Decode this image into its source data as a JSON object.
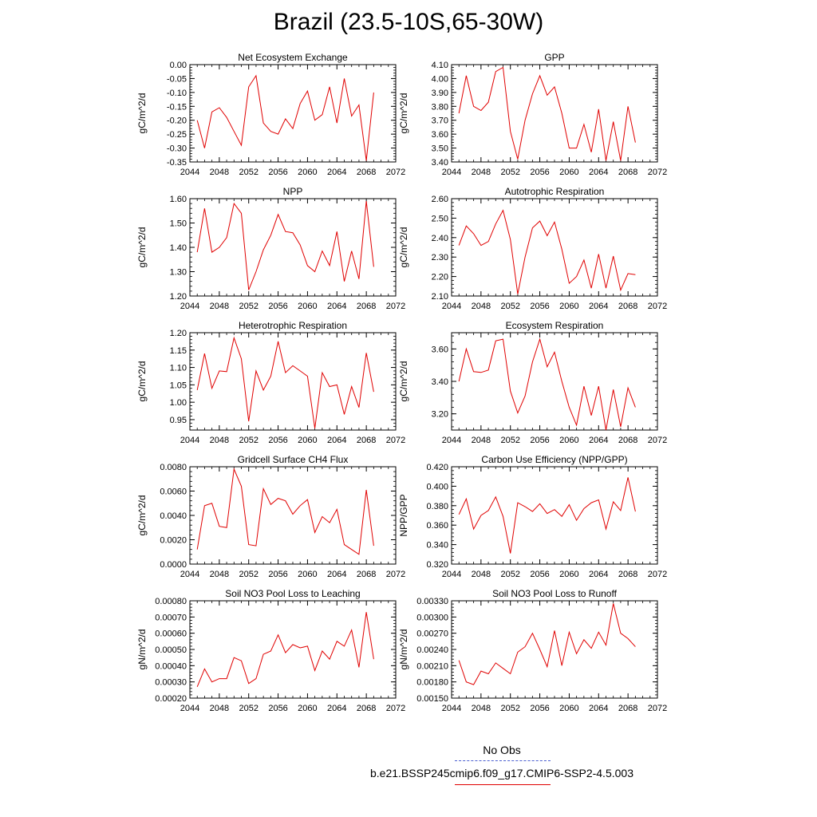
{
  "page": {
    "title": "Brazil (23.5-10S,65-30W)"
  },
  "legend": {
    "obs_label": "No Obs",
    "model_label": "b.e21.BSSP245cmip6.f09_g17.CMIP6-SSP2-4.5.003",
    "obs_color": "#4a5fd0",
    "model_color": "#e00000"
  },
  "chart_data": [
    {
      "type": "line",
      "title": "Net Ecosystem Exchange",
      "ylabel": "gC/m^2/d",
      "xlim": [
        2044,
        2072
      ],
      "ylim": [
        -0.35,
        0.0
      ],
      "xticks": [
        "2044",
        "2048",
        "2052",
        "2056",
        "2060",
        "2064",
        "2068",
        "2072"
      ],
      "yticks": [
        "0.00",
        "-0.05",
        "-0.10",
        "-0.15",
        "-0.20",
        "-0.25",
        "-0.30",
        "-0.35"
      ],
      "ytick_values": [
        0.0,
        -0.05,
        -0.1,
        -0.15,
        -0.2,
        -0.25,
        -0.3,
        -0.35
      ],
      "x": [
        2045,
        2046,
        2047,
        2048,
        2049,
        2050,
        2051,
        2052,
        2053,
        2054,
        2055,
        2056,
        2057,
        2058,
        2059,
        2060,
        2061,
        2062,
        2063,
        2064,
        2065,
        2066,
        2067,
        2068,
        2069
      ],
      "series": [
        {
          "values": [
            -0.2,
            -0.3,
            -0.17,
            -0.155,
            -0.19,
            -0.24,
            -0.29,
            -0.08,
            -0.04,
            -0.21,
            -0.24,
            -0.25,
            -0.195,
            -0.23,
            -0.14,
            -0.095,
            -0.2,
            -0.18,
            -0.08,
            -0.21,
            -0.05,
            -0.185,
            -0.145,
            -0.345,
            -0.1
          ]
        }
      ]
    },
    {
      "type": "line",
      "title": "GPP",
      "ylabel": "gC/m^2/d",
      "xlim": [
        2044,
        2072
      ],
      "ylim": [
        3.4,
        4.1
      ],
      "xticks": [
        "2044",
        "2048",
        "2052",
        "2056",
        "2060",
        "2064",
        "2068",
        "2072"
      ],
      "yticks": [
        "4.10",
        "4.00",
        "3.90",
        "3.80",
        "3.70",
        "3.60",
        "3.50",
        "3.40"
      ],
      "ytick_values": [
        4.1,
        4.0,
        3.9,
        3.8,
        3.7,
        3.6,
        3.5,
        3.4
      ],
      "x": [
        2045,
        2046,
        2047,
        2048,
        2049,
        2050,
        2051,
        2052,
        2053,
        2054,
        2055,
        2056,
        2057,
        2058,
        2059,
        2060,
        2061,
        2062,
        2063,
        2064,
        2065,
        2066,
        2067,
        2068,
        2069
      ],
      "series": [
        {
          "values": [
            3.75,
            4.02,
            3.8,
            3.77,
            3.83,
            4.05,
            4.08,
            3.62,
            3.42,
            3.7,
            3.89,
            4.02,
            3.88,
            3.94,
            3.75,
            3.5,
            3.5,
            3.67,
            3.47,
            3.78,
            3.41,
            3.69,
            3.41,
            3.8,
            3.54
          ]
        }
      ]
    },
    {
      "type": "line",
      "title": "NPP",
      "ylabel": "gC/m^2/d",
      "xlim": [
        2044,
        2072
      ],
      "ylim": [
        1.2,
        1.6
      ],
      "xticks": [
        "2044",
        "2048",
        "2052",
        "2056",
        "2060",
        "2064",
        "2068",
        "2072"
      ],
      "yticks": [
        "1.60",
        "1.50",
        "1.40",
        "1.30",
        "1.20"
      ],
      "ytick_values": [
        1.6,
        1.5,
        1.4,
        1.3,
        1.2
      ],
      "x": [
        2045,
        2046,
        2047,
        2048,
        2049,
        2050,
        2051,
        2052,
        2053,
        2054,
        2055,
        2056,
        2057,
        2058,
        2059,
        2060,
        2061,
        2062,
        2063,
        2064,
        2065,
        2066,
        2067,
        2068,
        2069
      ],
      "series": [
        {
          "values": [
            1.38,
            1.56,
            1.38,
            1.4,
            1.44,
            1.58,
            1.54,
            1.225,
            1.3,
            1.39,
            1.45,
            1.535,
            1.465,
            1.46,
            1.41,
            1.325,
            1.3,
            1.385,
            1.325,
            1.465,
            1.26,
            1.385,
            1.27,
            1.59,
            1.32
          ]
        }
      ]
    },
    {
      "type": "line",
      "title": "Autotrophic Respiration",
      "ylabel": "gC/m^2/d",
      "xlim": [
        2044,
        2072
      ],
      "ylim": [
        2.1,
        2.6
      ],
      "xticks": [
        "2044",
        "2048",
        "2052",
        "2056",
        "2060",
        "2064",
        "2068",
        "2072"
      ],
      "yticks": [
        "2.60",
        "2.50",
        "2.40",
        "2.30",
        "2.20",
        "2.10"
      ],
      "ytick_values": [
        2.6,
        2.5,
        2.4,
        2.3,
        2.2,
        2.1
      ],
      "x": [
        2045,
        2046,
        2047,
        2048,
        2049,
        2050,
        2051,
        2052,
        2053,
        2054,
        2055,
        2056,
        2057,
        2058,
        2059,
        2060,
        2061,
        2062,
        2063,
        2064,
        2065,
        2066,
        2067,
        2068,
        2069
      ],
      "series": [
        {
          "values": [
            2.36,
            2.46,
            2.42,
            2.36,
            2.38,
            2.47,
            2.54,
            2.39,
            2.11,
            2.3,
            2.45,
            2.485,
            2.41,
            2.48,
            2.34,
            2.165,
            2.2,
            2.285,
            2.14,
            2.315,
            2.14,
            2.305,
            2.13,
            2.215,
            2.21
          ]
        }
      ]
    },
    {
      "type": "line",
      "title": "Heterotrophic Respiration",
      "ylabel": "gC/m^2/d",
      "xlim": [
        2044,
        2072
      ],
      "ylim": [
        0.92,
        1.2
      ],
      "xticks": [
        "2044",
        "2048",
        "2052",
        "2056",
        "2060",
        "2064",
        "2068",
        "2072"
      ],
      "yticks": [
        "1.20",
        "1.15",
        "1.10",
        "1.05",
        "1.00",
        "0.95"
      ],
      "ytick_values": [
        1.2,
        1.15,
        1.1,
        1.05,
        1.0,
        0.95
      ],
      "x": [
        2045,
        2046,
        2047,
        2048,
        2049,
        2050,
        2051,
        2052,
        2053,
        2054,
        2055,
        2056,
        2057,
        2058,
        2059,
        2060,
        2061,
        2062,
        2063,
        2064,
        2065,
        2066,
        2067,
        2068,
        2069
      ],
      "series": [
        {
          "values": [
            1.035,
            1.14,
            1.04,
            1.09,
            1.088,
            1.185,
            1.125,
            0.945,
            1.09,
            1.035,
            1.075,
            1.175,
            1.085,
            1.105,
            1.09,
            1.075,
            0.925,
            1.085,
            1.045,
            1.05,
            0.965,
            1.045,
            0.985,
            1.142,
            1.03
          ]
        }
      ]
    },
    {
      "type": "line",
      "title": "Ecosystem Respiration",
      "ylabel": "gC/m^2/d",
      "xlim": [
        2044,
        2072
      ],
      "ylim": [
        3.1,
        3.7
      ],
      "xticks": [
        "2044",
        "2048",
        "2052",
        "2056",
        "2060",
        "2064",
        "2068",
        "2072"
      ],
      "yticks": [
        "3.60",
        "3.40",
        "3.20"
      ],
      "ytick_values": [
        3.6,
        3.4,
        3.2
      ],
      "x": [
        2045,
        2046,
        2047,
        2048,
        2049,
        2050,
        2051,
        2052,
        2053,
        2054,
        2055,
        2056,
        2057,
        2058,
        2059,
        2060,
        2061,
        2062,
        2063,
        2064,
        2065,
        2066,
        2067,
        2068,
        2069
      ],
      "series": [
        {
          "values": [
            3.4,
            3.6,
            3.46,
            3.455,
            3.47,
            3.65,
            3.66,
            3.34,
            3.205,
            3.31,
            3.52,
            3.66,
            3.49,
            3.58,
            3.4,
            3.24,
            3.13,
            3.37,
            3.19,
            3.37,
            3.1,
            3.35,
            3.12,
            3.36,
            3.24
          ]
        }
      ]
    },
    {
      "type": "line",
      "title": "Gridcell Surface CH4 Flux",
      "ylabel": "gC/m^2/d",
      "xlim": [
        2044,
        2072
      ],
      "ylim": [
        0.0,
        0.008
      ],
      "xticks": [
        "2044",
        "2048",
        "2052",
        "2056",
        "2060",
        "2064",
        "2068",
        "2072"
      ],
      "yticks": [
        "0.0080",
        "0.0060",
        "0.0040",
        "0.0020",
        "0.0000"
      ],
      "ytick_values": [
        0.008,
        0.006,
        0.004,
        0.002,
        0.0
      ],
      "x": [
        2045,
        2046,
        2047,
        2048,
        2049,
        2050,
        2051,
        2052,
        2053,
        2054,
        2055,
        2056,
        2057,
        2058,
        2059,
        2060,
        2061,
        2062,
        2063,
        2064,
        2065,
        2066,
        2067,
        2068,
        2069
      ],
      "series": [
        {
          "values": [
            0.0012,
            0.0048,
            0.005,
            0.0031,
            0.003,
            0.0078,
            0.0064,
            0.0016,
            0.0015,
            0.0062,
            0.0049,
            0.0054,
            0.0052,
            0.0041,
            0.0048,
            0.0053,
            0.0026,
            0.0039,
            0.0034,
            0.0045,
            0.0016,
            0.0012,
            0.0008,
            0.0061,
            0.0015
          ]
        }
      ]
    },
    {
      "type": "line",
      "title": "Carbon Use Efficiency (NPP/GPP)",
      "ylabel": "NPP/GPP",
      "xlim": [
        2044,
        2072
      ],
      "ylim": [
        0.32,
        0.42
      ],
      "xticks": [
        "2044",
        "2048",
        "2052",
        "2056",
        "2060",
        "2064",
        "2068",
        "2072"
      ],
      "yticks": [
        "0.420",
        "0.400",
        "0.380",
        "0.360",
        "0.340",
        "0.320"
      ],
      "ytick_values": [
        0.42,
        0.4,
        0.38,
        0.36,
        0.34,
        0.32
      ],
      "x": [
        2045,
        2046,
        2047,
        2048,
        2049,
        2050,
        2051,
        2052,
        2053,
        2054,
        2055,
        2056,
        2057,
        2058,
        2059,
        2060,
        2061,
        2062,
        2063,
        2064,
        2065,
        2066,
        2067,
        2068,
        2069
      ],
      "series": [
        {
          "values": [
            0.371,
            0.387,
            0.356,
            0.37,
            0.375,
            0.389,
            0.369,
            0.331,
            0.383,
            0.379,
            0.374,
            0.382,
            0.372,
            0.376,
            0.369,
            0.381,
            0.365,
            0.377,
            0.383,
            0.386,
            0.356,
            0.384,
            0.375,
            0.409,
            0.374
          ]
        }
      ]
    },
    {
      "type": "line",
      "title": "Soil NO3 Pool Loss to Leaching",
      "ylabel": "gN/m^2/d",
      "xlim": [
        2044,
        2072
      ],
      "ylim": [
        0.0002,
        0.0008
      ],
      "xticks": [
        "2044",
        "2048",
        "2052",
        "2056",
        "2060",
        "2064",
        "2068",
        "2072"
      ],
      "yticks": [
        "0.00080",
        "0.00070",
        "0.00060",
        "0.00050",
        "0.00040",
        "0.00030",
        "0.00020"
      ],
      "ytick_values": [
        0.0008,
        0.0007,
        0.0006,
        0.0005,
        0.0004,
        0.0003,
        0.0002
      ],
      "x": [
        2045,
        2046,
        2047,
        2048,
        2049,
        2050,
        2051,
        2052,
        2053,
        2054,
        2055,
        2056,
        2057,
        2058,
        2059,
        2060,
        2061,
        2062,
        2063,
        2064,
        2065,
        2066,
        2067,
        2068,
        2069
      ],
      "series": [
        {
          "values": [
            0.00027,
            0.00038,
            0.0003,
            0.00032,
            0.00032,
            0.00045,
            0.00043,
            0.00029,
            0.00032,
            0.00047,
            0.00049,
            0.00059,
            0.00048,
            0.00053,
            0.00051,
            0.00052,
            0.00037,
            0.00049,
            0.00044,
            0.00055,
            0.00052,
            0.00062,
            0.00039,
            0.00073,
            0.00044
          ]
        }
      ]
    },
    {
      "type": "line",
      "title": "Soil NO3 Pool Loss to Runoff",
      "ylabel": "gN/m^2/d",
      "xlim": [
        2044,
        2072
      ],
      "ylim": [
        0.0015,
        0.0033
      ],
      "xticks": [
        "2044",
        "2048",
        "2052",
        "2056",
        "2060",
        "2064",
        "2068",
        "2072"
      ],
      "yticks": [
        "0.00330",
        "0.00300",
        "0.00270",
        "0.00240",
        "0.00210",
        "0.00180",
        "0.00150"
      ],
      "ytick_values": [
        0.0033,
        0.003,
        0.0027,
        0.0024,
        0.0021,
        0.0018,
        0.0015
      ],
      "x": [
        2045,
        2046,
        2047,
        2048,
        2049,
        2050,
        2051,
        2052,
        2053,
        2054,
        2055,
        2056,
        2057,
        2058,
        2059,
        2060,
        2061,
        2062,
        2063,
        2064,
        2065,
        2066,
        2067,
        2068,
        2069
      ],
      "series": [
        {
          "values": [
            0.0022,
            0.0018,
            0.00175,
            0.002,
            0.00195,
            0.00215,
            0.00205,
            0.00195,
            0.00235,
            0.00245,
            0.0027,
            0.0024,
            0.00208,
            0.00275,
            0.0021,
            0.00272,
            0.00232,
            0.00258,
            0.00242,
            0.00272,
            0.00248,
            0.00325,
            0.0027,
            0.0026,
            0.00245
          ]
        }
      ]
    }
  ]
}
